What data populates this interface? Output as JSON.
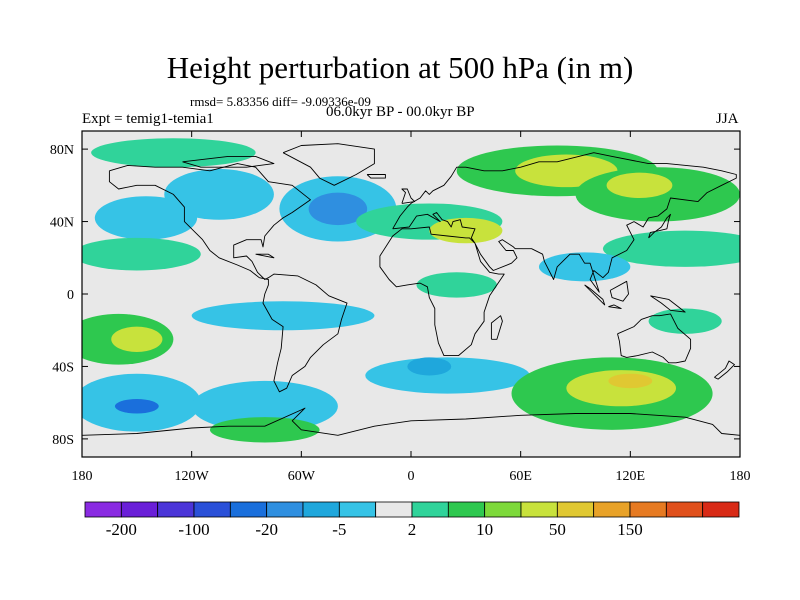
{
  "title": "Height perturbation at 500 hPa (in m)",
  "stats": "rmsd= 5.83356 diff= -9.09336e-09",
  "left_label": "Expt = temig1-temia1",
  "center_label": "06.0kyr BP - 00.0kyr BP",
  "right_label": "JJA",
  "map": {
    "projection": "cylindrical-equidistant",
    "lon_range": [
      -180,
      180
    ],
    "lat_range": [
      -90,
      90
    ],
    "background": "#e8e8e8",
    "coastline_color": "#000000",
    "lat_tick_labels": [
      {
        "lat": 80,
        "label": "80N"
      },
      {
        "lat": 40,
        "label": "40N"
      },
      {
        "lat": 0,
        "label": "0"
      },
      {
        "lat": -40,
        "label": "40S"
      },
      {
        "lat": -80,
        "label": "80S"
      }
    ],
    "lon_tick_labels": [
      {
        "lon": -180,
        "label": "180"
      },
      {
        "lon": -120,
        "label": "120W"
      },
      {
        "lon": -60,
        "label": "60W"
      },
      {
        "lon": 0,
        "label": "0"
      },
      {
        "lon": 60,
        "label": "60E"
      },
      {
        "lon": 120,
        "label": "120E"
      },
      {
        "lon": 180,
        "label": "180"
      }
    ]
  },
  "colorbar": {
    "colors": [
      "#8a2be2",
      "#6a1fd8",
      "#4b35d8",
      "#2a50d8",
      "#1a6fdc",
      "#2f8fe0",
      "#1fa7dc",
      "#36c3e6",
      "#e8e8e8",
      "#30d39a",
      "#2ec84f",
      "#7dd93a",
      "#c8e23c",
      "#e0c832",
      "#e8a228",
      "#e67a22",
      "#e0501c",
      "#d82a16"
    ],
    "labels": [
      {
        "after_box": 1,
        "label": "-200"
      },
      {
        "after_box": 3,
        "label": "-100"
      },
      {
        "after_box": 5,
        "label": "-20"
      },
      {
        "after_box": 7,
        "label": "-5"
      },
      {
        "after_box": 9,
        "label": "2"
      },
      {
        "after_box": 11,
        "label": "10"
      },
      {
        "after_box": 13,
        "label": "50"
      },
      {
        "after_box": 15,
        "label": "150"
      }
    ]
  },
  "anomaly_fields": [
    {
      "lon": -130,
      "lat": 78,
      "rx": 45,
      "ry": 8,
      "level": 9
    },
    {
      "lon": -105,
      "lat": 55,
      "rx": 30,
      "ry": 14,
      "level": 7
    },
    {
      "lon": -40,
      "lat": 47,
      "rx": 32,
      "ry": 18,
      "level": 7
    },
    {
      "lon": -40,
      "lat": 47,
      "rx": 16,
      "ry": 9,
      "level": 5
    },
    {
      "lon": -145,
      "lat": 42,
      "rx": 28,
      "ry": 12,
      "level": 7
    },
    {
      "lon": -150,
      "lat": 22,
      "rx": 35,
      "ry": 9,
      "level": 9
    },
    {
      "lon": 10,
      "lat": 40,
      "rx": 40,
      "ry": 10,
      "level": 9
    },
    {
      "lon": 30,
      "lat": 35,
      "rx": 20,
      "ry": 7,
      "level": 12
    },
    {
      "lon": 80,
      "lat": 68,
      "rx": 55,
      "ry": 14,
      "level": 10
    },
    {
      "lon": 85,
      "lat": 68,
      "rx": 28,
      "ry": 9,
      "level": 12
    },
    {
      "lon": 135,
      "lat": 55,
      "rx": 45,
      "ry": 15,
      "level": 10
    },
    {
      "lon": 125,
      "lat": 60,
      "rx": 18,
      "ry": 7,
      "level": 12
    },
    {
      "lon": 150,
      "lat": 25,
      "rx": 45,
      "ry": 10,
      "level": 9
    },
    {
      "lon": 95,
      "lat": 15,
      "rx": 25,
      "ry": 8,
      "level": 7
    },
    {
      "lon": -160,
      "lat": -25,
      "rx": 30,
      "ry": 14,
      "level": 10
    },
    {
      "lon": -150,
      "lat": -25,
      "rx": 14,
      "ry": 7,
      "level": 12
    },
    {
      "lon": -150,
      "lat": -60,
      "rx": 35,
      "ry": 16,
      "level": 7
    },
    {
      "lon": -150,
      "lat": -62,
      "rx": 12,
      "ry": 4,
      "level": 4
    },
    {
      "lon": -80,
      "lat": -62,
      "rx": 40,
      "ry": 14,
      "level": 7
    },
    {
      "lon": -80,
      "lat": -75,
      "rx": 30,
      "ry": 7,
      "level": 10
    },
    {
      "lon": -70,
      "lat": -12,
      "rx": 50,
      "ry": 8,
      "level": 7
    },
    {
      "lon": 20,
      "lat": -45,
      "rx": 45,
      "ry": 10,
      "level": 7
    },
    {
      "lon": 10,
      "lat": -40,
      "rx": 12,
      "ry": 5,
      "level": 6
    },
    {
      "lon": 110,
      "lat": -55,
      "rx": 55,
      "ry": 20,
      "level": 10
    },
    {
      "lon": 115,
      "lat": -52,
      "rx": 30,
      "ry": 10,
      "level": 12
    },
    {
      "lon": 120,
      "lat": -48,
      "rx": 12,
      "ry": 4,
      "level": 13
    },
    {
      "lon": 150,
      "lat": -15,
      "rx": 20,
      "ry": 7,
      "level": 9
    },
    {
      "lon": 25,
      "lat": 5,
      "rx": 22,
      "ry": 7,
      "level": 9
    }
  ],
  "coastlines": [
    [
      [
        -165,
        68
      ],
      [
        -155,
        71
      ],
      [
        -140,
        70
      ],
      [
        -125,
        70
      ],
      [
        -110,
        68
      ],
      [
        -95,
        72
      ],
      [
        -85,
        70
      ],
      [
        -78,
        62
      ],
      [
        -65,
        60
      ],
      [
        -55,
        52
      ],
      [
        -65,
        45
      ],
      [
        -70,
        42
      ],
      [
        -75,
        38
      ],
      [
        -80,
        32
      ],
      [
        -81,
        26
      ],
      [
        -82,
        30
      ],
      [
        -90,
        30
      ],
      [
        -97,
        27
      ],
      [
        -97,
        20
      ],
      [
        -90,
        21
      ],
      [
        -87,
        18
      ],
      [
        -84,
        12
      ],
      [
        -80,
        8
      ],
      [
        -78,
        9
      ],
      [
        -75,
        11
      ],
      [
        -62,
        10
      ],
      [
        -52,
        5
      ],
      [
        -45,
        -1
      ],
      [
        -35,
        -5
      ],
      [
        -38,
        -14
      ],
      [
        -40,
        -22
      ],
      [
        -48,
        -28
      ],
      [
        -55,
        -35
      ],
      [
        -58,
        -40
      ],
      [
        -65,
        -45
      ],
      [
        -68,
        -52
      ],
      [
        -72,
        -54
      ],
      [
        -75,
        -48
      ],
      [
        -73,
        -38
      ],
      [
        -71,
        -30
      ],
      [
        -70,
        -18
      ],
      [
        -76,
        -14
      ],
      [
        -81,
        -5
      ],
      [
        -80,
        0
      ],
      [
        -78,
        5
      ],
      [
        -78,
        8
      ],
      [
        -83,
        9
      ],
      [
        -88,
        13
      ],
      [
        -95,
        16
      ],
      [
        -105,
        20
      ],
      [
        -110,
        24
      ],
      [
        -114,
        30
      ],
      [
        -118,
        34
      ],
      [
        -124,
        40
      ],
      [
        -124,
        48
      ],
      [
        -130,
        55
      ],
      [
        -140,
        60
      ],
      [
        -150,
        60
      ],
      [
        -160,
        58
      ],
      [
        -165,
        62
      ],
      [
        -165,
        68
      ]
    ],
    [
      [
        -70,
        78
      ],
      [
        -60,
        82
      ],
      [
        -40,
        83
      ],
      [
        -20,
        80
      ],
      [
        -20,
        72
      ],
      [
        -30,
        66
      ],
      [
        -42,
        60
      ],
      [
        -50,
        64
      ],
      [
        -55,
        70
      ],
      [
        -70,
        78
      ]
    ],
    [
      [
        -10,
        36
      ],
      [
        -6,
        43
      ],
      [
        -2,
        48
      ],
      [
        0,
        50
      ],
      [
        5,
        53
      ],
      [
        8,
        57
      ],
      [
        10,
        55
      ],
      [
        12,
        57
      ],
      [
        18,
        60
      ],
      [
        22,
        65
      ],
      [
        25,
        70
      ],
      [
        30,
        70
      ],
      [
        40,
        68
      ],
      [
        50,
        68
      ],
      [
        60,
        70
      ],
      [
        70,
        73
      ],
      [
        80,
        73
      ],
      [
        100,
        78
      ],
      [
        110,
        76
      ],
      [
        130,
        72
      ],
      [
        140,
        72
      ],
      [
        160,
        70
      ],
      [
        170,
        68
      ],
      [
        178,
        66
      ],
      [
        178,
        64
      ],
      [
        170,
        60
      ],
      [
        162,
        56
      ],
      [
        157,
        51
      ],
      [
        142,
        53
      ],
      [
        140,
        47
      ],
      [
        135,
        43
      ],
      [
        130,
        42
      ],
      [
        127,
        37
      ],
      [
        122,
        40
      ],
      [
        118,
        38
      ],
      [
        122,
        30
      ],
      [
        118,
        24
      ],
      [
        110,
        20
      ],
      [
        108,
        12
      ],
      [
        105,
        9
      ],
      [
        100,
        13
      ],
      [
        98,
        8
      ],
      [
        103,
        1
      ],
      [
        98,
        17
      ],
      [
        95,
        17
      ],
      [
        92,
        22
      ],
      [
        87,
        22
      ],
      [
        80,
        15
      ],
      [
        78,
        8
      ],
      [
        73,
        18
      ],
      [
        72,
        22
      ],
      [
        66,
        25
      ],
      [
        57,
        25
      ],
      [
        56,
        26
      ],
      [
        50,
        30
      ],
      [
        48,
        29
      ],
      [
        52,
        24
      ],
      [
        56,
        24
      ],
      [
        58,
        20
      ],
      [
        55,
        17
      ],
      [
        45,
        13
      ],
      [
        43,
        15
      ],
      [
        38,
        22
      ],
      [
        35,
        28
      ],
      [
        32,
        31
      ],
      [
        30,
        31
      ],
      [
        20,
        32
      ],
      [
        11,
        33
      ],
      [
        10,
        37
      ],
      [
        0,
        36
      ],
      [
        -5,
        36
      ],
      [
        -10,
        32
      ],
      [
        -17,
        21
      ],
      [
        -17,
        15
      ],
      [
        -12,
        8
      ],
      [
        -8,
        4
      ],
      [
        -2,
        5
      ],
      [
        5,
        6
      ],
      [
        9,
        4
      ],
      [
        10,
        -2
      ],
      [
        13,
        -8
      ],
      [
        13,
        -17
      ],
      [
        15,
        -27
      ],
      [
        18,
        -34
      ],
      [
        26,
        -34
      ],
      [
        33,
        -28
      ],
      [
        35,
        -22
      ],
      [
        40,
        -15
      ],
      [
        40,
        -10
      ],
      [
        43,
        -1
      ],
      [
        51,
        11
      ],
      [
        48,
        11
      ],
      [
        43,
        12
      ],
      [
        38,
        18
      ],
      [
        35,
        28
      ],
      [
        33,
        31
      ],
      [
        35,
        36
      ],
      [
        28,
        37
      ],
      [
        27,
        41
      ],
      [
        23,
        40
      ],
      [
        22,
        37
      ],
      [
        20,
        40
      ],
      [
        17,
        41
      ],
      [
        14,
        45
      ],
      [
        12,
        44
      ],
      [
        16,
        40
      ],
      [
        9,
        44
      ],
      [
        3,
        43
      ],
      [
        -1,
        37
      ],
      [
        -10,
        36
      ]
    ],
    [
      [
        113,
        -22
      ],
      [
        114,
        -26
      ],
      [
        115,
        -34
      ],
      [
        118,
        -35
      ],
      [
        124,
        -34
      ],
      [
        132,
        -32
      ],
      [
        138,
        -35
      ],
      [
        141,
        -38
      ],
      [
        145,
        -38
      ],
      [
        150,
        -37
      ],
      [
        153,
        -30
      ],
      [
        153,
        -25
      ],
      [
        146,
        -19
      ],
      [
        142,
        -11
      ],
      [
        136,
        -12
      ],
      [
        132,
        -12
      ],
      [
        126,
        -14
      ],
      [
        122,
        -18
      ],
      [
        113,
        -22
      ]
    ],
    [
      [
        -180,
        -78
      ],
      [
        -150,
        -77
      ],
      [
        -120,
        -74
      ],
      [
        -100,
        -73
      ],
      [
        -80,
        -73
      ],
      [
        -60,
        -64
      ],
      [
        -58,
        -63
      ],
      [
        -65,
        -70
      ],
      [
        -60,
        -75
      ],
      [
        -40,
        -78
      ],
      [
        -20,
        -73
      ],
      [
        0,
        -70
      ],
      [
        30,
        -69
      ],
      [
        60,
        -67
      ],
      [
        90,
        -66
      ],
      [
        120,
        -66
      ],
      [
        150,
        -68
      ],
      [
        165,
        -72
      ],
      [
        170,
        -77
      ],
      [
        180,
        -78
      ]
    ],
    [
      [
        -5,
        50
      ],
      [
        -3,
        56
      ],
      [
        -5,
        58
      ],
      [
        -2,
        58
      ],
      [
        0,
        53
      ],
      [
        2,
        51
      ],
      [
        -5,
        50
      ]
    ],
    [
      [
        130,
        31
      ],
      [
        131,
        34
      ],
      [
        136,
        35
      ],
      [
        140,
        36
      ],
      [
        141,
        41
      ],
      [
        142,
        44
      ],
      [
        140,
        42
      ],
      [
        137,
        37
      ],
      [
        133,
        34
      ],
      [
        130,
        31
      ]
    ],
    [
      [
        44,
        -25
      ],
      [
        47,
        -25
      ],
      [
        50,
        -15
      ],
      [
        49,
        -12
      ],
      [
        44,
        -16
      ],
      [
        44,
        -25
      ]
    ],
    [
      [
        95,
        5
      ],
      [
        106,
        -6
      ],
      [
        105,
        -3
      ],
      [
        98,
        3
      ],
      [
        95,
        5
      ]
    ],
    [
      [
        108,
        -7
      ],
      [
        115,
        -8
      ],
      [
        111,
        -6
      ],
      [
        108,
        -7
      ]
    ],
    [
      [
        109,
        2
      ],
      [
        118,
        7
      ],
      [
        119,
        0
      ],
      [
        116,
        -4
      ],
      [
        110,
        -2
      ],
      [
        109,
        2
      ]
    ],
    [
      [
        131,
        -1
      ],
      [
        141,
        -3
      ],
      [
        150,
        -10
      ],
      [
        142,
        -9
      ],
      [
        137,
        -5
      ],
      [
        131,
        -1
      ]
    ],
    [
      [
        166,
        -46
      ],
      [
        172,
        -41
      ],
      [
        174,
        -37
      ],
      [
        177,
        -39
      ],
      [
        173,
        -43
      ],
      [
        168,
        -47
      ],
      [
        166,
        -46
      ]
    ],
    [
      [
        -24,
        66
      ],
      [
        -14,
        66
      ],
      [
        -14,
        64
      ],
      [
        -22,
        64
      ],
      [
        -24,
        66
      ]
    ],
    [
      [
        -85,
        22
      ],
      [
        -75,
        20
      ],
      [
        -78,
        22
      ],
      [
        -85,
        22
      ]
    ],
    [
      [
        -125,
        73
      ],
      [
        -100,
        76
      ],
      [
        -85,
        76
      ],
      [
        -75,
        72
      ],
      [
        -90,
        70
      ],
      [
        -115,
        70
      ],
      [
        -125,
        73
      ]
    ]
  ]
}
